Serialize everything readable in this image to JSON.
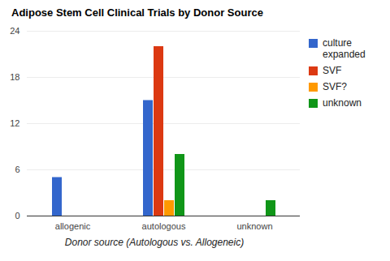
{
  "chart_data": {
    "type": "bar",
    "title": "Adipose Stem Cell Clinical Trials by Donor Source",
    "x_label": "Donor source (Autologous vs. Allogeneic)",
    "categories": [
      "allogenic",
      "autologous",
      "unknown"
    ],
    "series": [
      {
        "name": "culture expanded",
        "color": "#3366cc",
        "values": [
          5,
          15,
          0
        ]
      },
      {
        "name": "SVF",
        "color": "#dc3912",
        "values": [
          0,
          22,
          0
        ]
      },
      {
        "name": "SVF?",
        "color": "#ff9900",
        "values": [
          0,
          2,
          0
        ]
      },
      {
        "name": "unknown",
        "color": "#109618",
        "values": [
          0,
          8,
          2
        ]
      }
    ],
    "ylim": [
      0,
      24
    ],
    "yticks": [
      0,
      6,
      12,
      18,
      24
    ],
    "grid": true,
    "legend": "right"
  }
}
